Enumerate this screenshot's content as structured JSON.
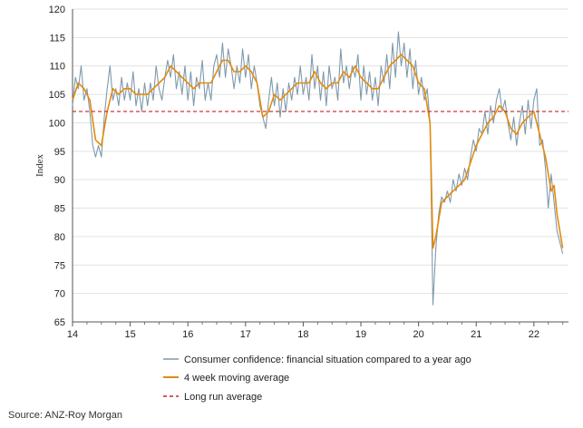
{
  "chart_data": {
    "type": "line",
    "ylabel": "Index",
    "ylim": [
      65,
      120
    ],
    "yticks": [
      65,
      70,
      75,
      80,
      85,
      90,
      95,
      100,
      105,
      110,
      115,
      120
    ],
    "xlim": [
      14,
      22.6
    ],
    "xticks": [
      "14",
      "15",
      "16",
      "17",
      "18",
      "19",
      "20",
      "21",
      "22"
    ],
    "grid": "horizontal",
    "legend_position": "bottom",
    "source": "Source: ANZ-Roy Morgan",
    "series": [
      {
        "name": "Consumer confidence: financial situation compared to a year ago",
        "color": "#7f9aad",
        "style": "solid",
        "points": [
          [
            14.0,
            103
          ],
          [
            14.05,
            108
          ],
          [
            14.1,
            106
          ],
          [
            14.15,
            110
          ],
          [
            14.2,
            104
          ],
          [
            14.25,
            106
          ],
          [
            14.3,
            102
          ],
          [
            14.35,
            96
          ],
          [
            14.4,
            94
          ],
          [
            14.45,
            96
          ],
          [
            14.5,
            94
          ],
          [
            14.55,
            101
          ],
          [
            14.6,
            106
          ],
          [
            14.65,
            110
          ],
          [
            14.7,
            104
          ],
          [
            14.75,
            106
          ],
          [
            14.8,
            103
          ],
          [
            14.85,
            108
          ],
          [
            14.9,
            104
          ],
          [
            14.95,
            107
          ],
          [
            15.0,
            104
          ],
          [
            15.05,
            109
          ],
          [
            15.1,
            103
          ],
          [
            15.15,
            106
          ],
          [
            15.2,
            102
          ],
          [
            15.25,
            107
          ],
          [
            15.3,
            103
          ],
          [
            15.35,
            107
          ],
          [
            15.4,
            104
          ],
          [
            15.45,
            110
          ],
          [
            15.5,
            106
          ],
          [
            15.55,
            104
          ],
          [
            15.6,
            108
          ],
          [
            15.65,
            111
          ],
          [
            15.7,
            108
          ],
          [
            15.75,
            112
          ],
          [
            15.8,
            106
          ],
          [
            15.85,
            109
          ],
          [
            15.9,
            105
          ],
          [
            15.95,
            110
          ],
          [
            16.0,
            104
          ],
          [
            16.05,
            109
          ],
          [
            16.1,
            103
          ],
          [
            16.15,
            108
          ],
          [
            16.2,
            106
          ],
          [
            16.25,
            111
          ],
          [
            16.3,
            104
          ],
          [
            16.35,
            107
          ],
          [
            16.4,
            104
          ],
          [
            16.45,
            110
          ],
          [
            16.5,
            112
          ],
          [
            16.55,
            108
          ],
          [
            16.6,
            114
          ],
          [
            16.65,
            108
          ],
          [
            16.7,
            113
          ],
          [
            16.75,
            110
          ],
          [
            16.8,
            106
          ],
          [
            16.85,
            110
          ],
          [
            16.9,
            107
          ],
          [
            16.95,
            113
          ],
          [
            17.0,
            108
          ],
          [
            17.05,
            112
          ],
          [
            17.1,
            106
          ],
          [
            17.15,
            110
          ],
          [
            17.2,
            107
          ],
          [
            17.25,
            103
          ],
          [
            17.3,
            101
          ],
          [
            17.35,
            99
          ],
          [
            17.4,
            104
          ],
          [
            17.45,
            108
          ],
          [
            17.5,
            103
          ],
          [
            17.55,
            107
          ],
          [
            17.6,
            101
          ],
          [
            17.65,
            106
          ],
          [
            17.7,
            102
          ],
          [
            17.75,
            107
          ],
          [
            17.8,
            104
          ],
          [
            17.85,
            108
          ],
          [
            17.9,
            105
          ],
          [
            17.95,
            110
          ],
          [
            18.0,
            105
          ],
          [
            18.05,
            108
          ],
          [
            18.1,
            104
          ],
          [
            18.15,
            112
          ],
          [
            18.2,
            106
          ],
          [
            18.25,
            110
          ],
          [
            18.3,
            104
          ],
          [
            18.35,
            109
          ],
          [
            18.4,
            103
          ],
          [
            18.45,
            110
          ],
          [
            18.5,
            106
          ],
          [
            18.55,
            108
          ],
          [
            18.6,
            104
          ],
          [
            18.65,
            113
          ],
          [
            18.7,
            107
          ],
          [
            18.75,
            110
          ],
          [
            18.8,
            106
          ],
          [
            18.85,
            110
          ],
          [
            18.9,
            108
          ],
          [
            18.95,
            112
          ],
          [
            19.0,
            104
          ],
          [
            19.05,
            110
          ],
          [
            19.1,
            105
          ],
          [
            19.15,
            109
          ],
          [
            19.2,
            104
          ],
          [
            19.25,
            108
          ],
          [
            19.3,
            103
          ],
          [
            19.35,
            110
          ],
          [
            19.4,
            107
          ],
          [
            19.45,
            112
          ],
          [
            19.5,
            106
          ],
          [
            19.55,
            114
          ],
          [
            19.6,
            108
          ],
          [
            19.65,
            116
          ],
          [
            19.7,
            110
          ],
          [
            19.75,
            114
          ],
          [
            19.8,
            108
          ],
          [
            19.85,
            113
          ],
          [
            19.9,
            106
          ],
          [
            19.95,
            111
          ],
          [
            20.0,
            105
          ],
          [
            20.05,
            108
          ],
          [
            20.1,
            104
          ],
          [
            20.15,
            106
          ],
          [
            20.2,
            100
          ],
          [
            20.25,
            68
          ],
          [
            20.3,
            78
          ],
          [
            20.35,
            84
          ],
          [
            20.4,
            87
          ],
          [
            20.45,
            86
          ],
          [
            20.5,
            88
          ],
          [
            20.55,
            86
          ],
          [
            20.6,
            90
          ],
          [
            20.65,
            88
          ],
          [
            20.7,
            91
          ],
          [
            20.75,
            89
          ],
          [
            20.8,
            92
          ],
          [
            20.85,
            90
          ],
          [
            20.9,
            94
          ],
          [
            20.95,
            97
          ],
          [
            21.0,
            95
          ],
          [
            21.05,
            99
          ],
          [
            21.1,
            98
          ],
          [
            21.15,
            102
          ],
          [
            21.2,
            98
          ],
          [
            21.25,
            103
          ],
          [
            21.3,
            100
          ],
          [
            21.35,
            104
          ],
          [
            21.4,
            106
          ],
          [
            21.45,
            102
          ],
          [
            21.5,
            104
          ],
          [
            21.55,
            100
          ],
          [
            21.6,
            97
          ],
          [
            21.65,
            101
          ],
          [
            21.7,
            96
          ],
          [
            21.75,
            100
          ],
          [
            21.8,
            103
          ],
          [
            21.85,
            98
          ],
          [
            21.9,
            104
          ],
          [
            21.95,
            99
          ],
          [
            22.0,
            104
          ],
          [
            22.05,
            106
          ],
          [
            22.1,
            96
          ],
          [
            22.15,
            97
          ],
          [
            22.2,
            92
          ],
          [
            22.25,
            85
          ],
          [
            22.3,
            91
          ],
          [
            22.35,
            86
          ],
          [
            22.4,
            81
          ],
          [
            22.45,
            79
          ],
          [
            22.5,
            77
          ]
        ]
      },
      {
        "name": "4 week moving average",
        "color": "#e58a0c",
        "style": "solid",
        "points": [
          [
            14.0,
            104
          ],
          [
            14.1,
            107
          ],
          [
            14.2,
            106
          ],
          [
            14.3,
            104
          ],
          [
            14.4,
            97
          ],
          [
            14.5,
            96
          ],
          [
            14.6,
            102
          ],
          [
            14.7,
            106
          ],
          [
            14.8,
            105
          ],
          [
            14.9,
            106
          ],
          [
            15.0,
            106
          ],
          [
            15.1,
            105
          ],
          [
            15.2,
            105
          ],
          [
            15.3,
            105
          ],
          [
            15.4,
            106
          ],
          [
            15.5,
            107
          ],
          [
            15.6,
            108
          ],
          [
            15.7,
            110
          ],
          [
            15.8,
            109
          ],
          [
            15.9,
            108
          ],
          [
            16.0,
            107
          ],
          [
            16.1,
            106
          ],
          [
            16.2,
            107
          ],
          [
            16.3,
            107
          ],
          [
            16.4,
            107
          ],
          [
            16.5,
            109
          ],
          [
            16.6,
            111
          ],
          [
            16.7,
            111
          ],
          [
            16.8,
            109
          ],
          [
            16.9,
            109
          ],
          [
            17.0,
            110
          ],
          [
            17.1,
            109
          ],
          [
            17.2,
            107
          ],
          [
            17.3,
            101
          ],
          [
            17.4,
            102
          ],
          [
            17.5,
            105
          ],
          [
            17.6,
            104
          ],
          [
            17.7,
            105
          ],
          [
            17.8,
            106
          ],
          [
            17.9,
            107
          ],
          [
            18.0,
            107
          ],
          [
            18.1,
            107
          ],
          [
            18.2,
            109
          ],
          [
            18.3,
            107
          ],
          [
            18.4,
            106
          ],
          [
            18.5,
            107
          ],
          [
            18.6,
            107
          ],
          [
            18.7,
            109
          ],
          [
            18.8,
            108
          ],
          [
            18.9,
            110
          ],
          [
            19.0,
            108
          ],
          [
            19.1,
            107
          ],
          [
            19.2,
            106
          ],
          [
            19.3,
            106
          ],
          [
            19.4,
            108
          ],
          [
            19.5,
            110
          ],
          [
            19.6,
            111
          ],
          [
            19.7,
            112
          ],
          [
            19.8,
            111
          ],
          [
            19.9,
            110
          ],
          [
            20.0,
            107
          ],
          [
            20.1,
            106
          ],
          [
            20.2,
            100
          ],
          [
            20.25,
            78
          ],
          [
            20.3,
            80
          ],
          [
            20.4,
            86
          ],
          [
            20.5,
            87
          ],
          [
            20.6,
            88
          ],
          [
            20.7,
            89
          ],
          [
            20.8,
            90
          ],
          [
            20.9,
            93
          ],
          [
            21.0,
            96
          ],
          [
            21.1,
            98
          ],
          [
            21.2,
            100
          ],
          [
            21.3,
            101
          ],
          [
            21.4,
            103
          ],
          [
            21.5,
            102
          ],
          [
            21.6,
            99
          ],
          [
            21.7,
            98
          ],
          [
            21.8,
            100
          ],
          [
            21.9,
            101
          ],
          [
            22.0,
            102
          ],
          [
            22.1,
            98
          ],
          [
            22.2,
            94
          ],
          [
            22.3,
            88
          ],
          [
            22.35,
            89
          ],
          [
            22.4,
            84
          ],
          [
            22.5,
            78
          ]
        ]
      },
      {
        "name": "Long run average",
        "color": "#cc2222",
        "style": "dashed",
        "points": [
          [
            14.0,
            102
          ],
          [
            22.6,
            102
          ]
        ]
      }
    ]
  }
}
